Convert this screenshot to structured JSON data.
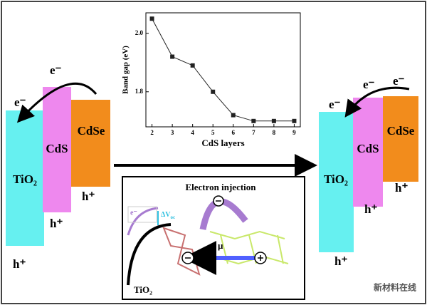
{
  "left": {
    "labels": {
      "tio2": "TiO₂",
      "cds": "CdS",
      "cdse": "CdSe"
    },
    "electrons": [
      "e⁻",
      "e⁻"
    ],
    "holes": [
      "h⁺",
      "h⁺",
      "h⁺"
    ]
  },
  "right": {
    "labels": {
      "tio2": "TiO₂",
      "cds": "CdS",
      "cdse": "CdSe"
    },
    "electrons": [
      "e⁻",
      "e⁻",
      "e⁻"
    ],
    "holes": [
      "h⁺",
      "h⁺",
      "h⁺"
    ]
  },
  "chart_data": {
    "type": "line",
    "x": [
      2,
      3,
      4,
      5,
      6,
      7,
      8,
      9
    ],
    "values": [
      2.05,
      1.92,
      1.89,
      1.8,
      1.72,
      1.7,
      1.7,
      1.7
    ],
    "xlabel": "CdS layers",
    "ylabel": "Band gap (eV)",
    "color": "#222222",
    "xlim": [
      1.7,
      9.3
    ],
    "xticks": [
      2,
      3,
      4,
      5,
      6,
      7,
      8,
      9
    ],
    "ylim": [
      1.68,
      2.07
    ],
    "yticks": [
      {
        "value": 2.0,
        "label": "2.0"
      },
      {
        "value": 1.8,
        "label": "1.8"
      }
    ]
  },
  "inset": {
    "title": "Electron injection",
    "electron": "e⁻",
    "voltage": "ΔV",
    "voltage_sub": "oc",
    "mobility": "μ",
    "material": "TiO₂"
  },
  "watermark": "新材料在线"
}
